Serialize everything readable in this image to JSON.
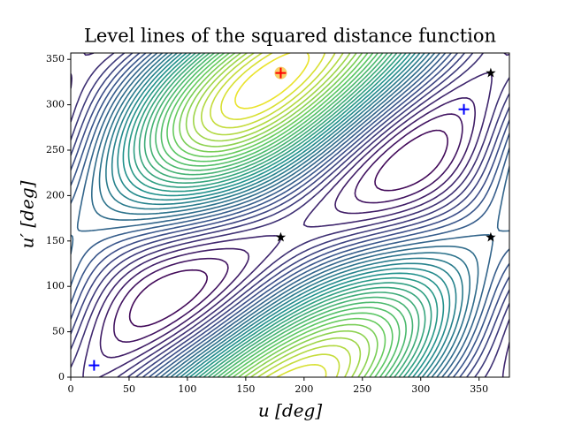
{
  "chart_data": {
    "type": "contour",
    "title": "Level lines of the squared distance function",
    "xlabel": "u [deg]",
    "ylabel": "u′ [deg]",
    "xlim": [
      0,
      376
    ],
    "ylim": [
      0,
      357
    ],
    "xticks": [
      0,
      50,
      100,
      150,
      200,
      250,
      300,
      350
    ],
    "yticks": [
      0,
      50,
      100,
      150,
      200,
      250,
      300,
      350
    ],
    "series": [
      {
        "marker": "plus",
        "color": "#0000ff",
        "x": [
          20,
          337
        ],
        "y": [
          13,
          295
        ]
      },
      {
        "marker": "plus",
        "color": "#ff0000",
        "x": [
          180
        ],
        "y": [
          335
        ]
      },
      {
        "marker": "star",
        "color": "#000000",
        "x": [
          180,
          360,
          360
        ],
        "y": [
          154,
          154,
          335
        ]
      }
    ]
  }
}
